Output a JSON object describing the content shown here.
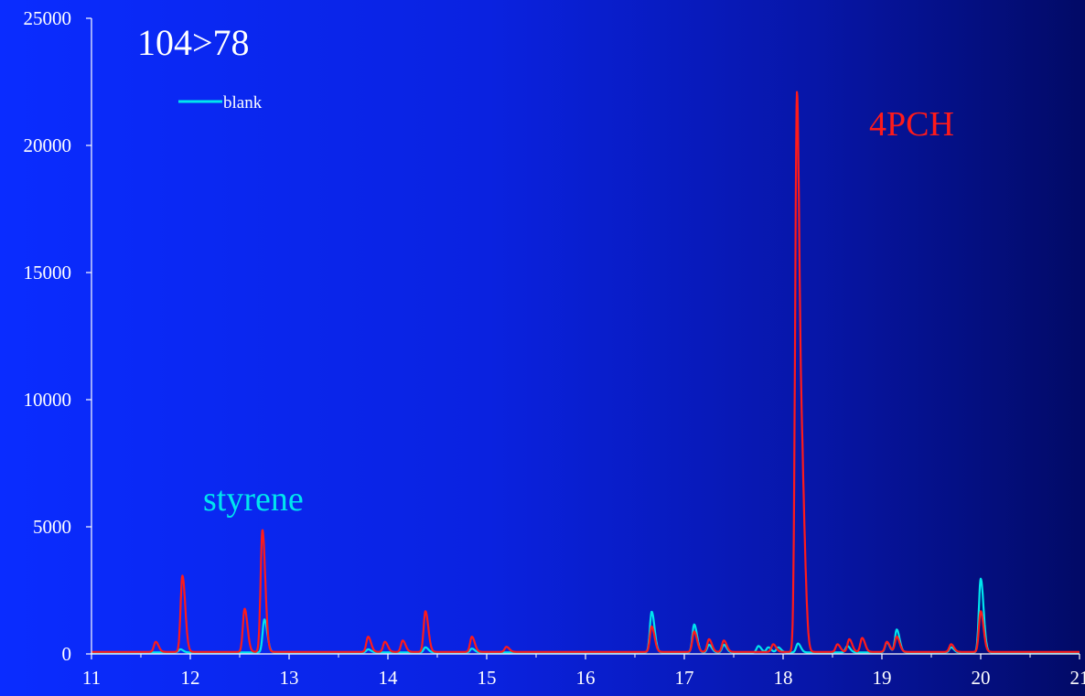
{
  "chart_data": {
    "type": "line",
    "title": "104>78",
    "xlabel": "",
    "ylabel": "",
    "xlim": [
      11,
      21
    ],
    "ylim": [
      0,
      25000
    ],
    "x_ticks": [
      "11",
      "12",
      "13",
      "14",
      "15",
      "16",
      "17",
      "18",
      "19",
      "20",
      "21"
    ],
    "y_ticks": [
      "0",
      "5000",
      "10000",
      "15000",
      "20000",
      "25000"
    ],
    "legend": {
      "placement": "top-left",
      "entries": [
        "blank"
      ]
    },
    "grid": false,
    "annotations": [
      {
        "text": "styrene",
        "color": "#00e5ee"
      },
      {
        "text": "4PCH",
        "color": "#ff1a1a"
      }
    ],
    "series": [
      {
        "name": "blank",
        "color": "#00e5ee",
        "baseline": 60,
        "peaks": [
          {
            "x": 11.9,
            "y": 120
          },
          {
            "x": 12.75,
            "y": 1300
          },
          {
            "x": 13.8,
            "y": 120
          },
          {
            "x": 14.38,
            "y": 200
          },
          {
            "x": 14.85,
            "y": 150
          },
          {
            "x": 16.67,
            "y": 1600
          },
          {
            "x": 17.1,
            "y": 1100
          },
          {
            "x": 17.25,
            "y": 300
          },
          {
            "x": 17.4,
            "y": 300
          },
          {
            "x": 17.75,
            "y": 250
          },
          {
            "x": 17.85,
            "y": 200
          },
          {
            "x": 17.95,
            "y": 200
          },
          {
            "x": 18.15,
            "y": 350
          },
          {
            "x": 18.65,
            "y": 250
          },
          {
            "x": 19.05,
            "y": 400
          },
          {
            "x": 19.15,
            "y": 900
          },
          {
            "x": 19.7,
            "y": 200
          },
          {
            "x": 20.0,
            "y": 2900
          }
        ]
      },
      {
        "name": "",
        "color": "#ff1a1a",
        "baseline": 80,
        "peaks": [
          {
            "x": 11.65,
            "y": 400
          },
          {
            "x": 11.92,
            "y": 3000
          },
          {
            "x": 12.55,
            "y": 1700
          },
          {
            "x": 12.73,
            "y": 4800
          },
          {
            "x": 13.8,
            "y": 600
          },
          {
            "x": 13.97,
            "y": 400
          },
          {
            "x": 14.15,
            "y": 450
          },
          {
            "x": 14.38,
            "y": 1600
          },
          {
            "x": 14.85,
            "y": 600
          },
          {
            "x": 15.2,
            "y": 200
          },
          {
            "x": 16.67,
            "y": 1000
          },
          {
            "x": 17.1,
            "y": 800
          },
          {
            "x": 17.25,
            "y": 500
          },
          {
            "x": 17.4,
            "y": 450
          },
          {
            "x": 17.9,
            "y": 300
          },
          {
            "x": 18.14,
            "y": 22000
          },
          {
            "x": 18.2,
            "y": 5000
          },
          {
            "x": 18.55,
            "y": 300
          },
          {
            "x": 18.67,
            "y": 500
          },
          {
            "x": 18.8,
            "y": 550
          },
          {
            "x": 19.05,
            "y": 400
          },
          {
            "x": 19.15,
            "y": 600
          },
          {
            "x": 19.7,
            "y": 300
          },
          {
            "x": 20.0,
            "y": 1600
          }
        ]
      }
    ]
  }
}
